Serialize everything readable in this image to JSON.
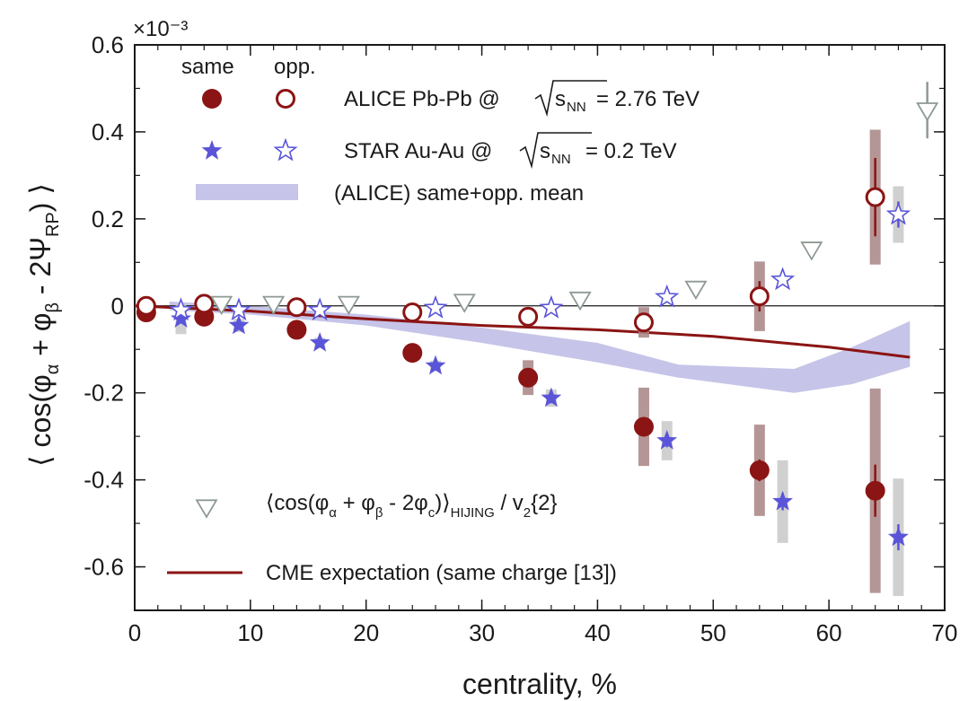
{
  "chart_data": {
    "type": "scatter",
    "xlabel": "centrality, %",
    "ylabel_parts": {
      "main": "⟨ cos(φ",
      "sub_alpha": "α",
      "plus": " + φ",
      "sub_beta": "β",
      "minus": " - 2Ψ",
      "sub_rp": "RP",
      "close": ") ⟩"
    },
    "multiplier": "×10⁻³",
    "xlim": [
      0,
      70
    ],
    "ylim": [
      -0.7,
      0.6
    ],
    "x_ticks": [
      "0",
      "10",
      "20",
      "30",
      "40",
      "50",
      "60",
      "70"
    ],
    "y_ticks": [
      "0.6",
      "0.4",
      "0.2",
      "0",
      "-0.2",
      "-0.4",
      "-0.6"
    ],
    "legend": {
      "same_header": "same",
      "opp_header": "opp.",
      "alice_prefix": "ALICE Pb-Pb @",
      "alice_sqrt_s": "s",
      "alice_sqrt_sub": "NN",
      "alice_suffix": "= 2.76 TeV",
      "star_prefix": "STAR Au-Au @",
      "star_sqrt_s": "s",
      "star_sqrt_sub": "NN",
      "star_suffix": "= 0.2 TeV",
      "band": "(ALICE) same+opp. mean",
      "hijing_main": "⟨cos(φ",
      "hijing_sub_a": "α",
      "hijing_plus": " + φ",
      "hijing_sub_b": "β",
      "hijing_minus": " - 2φ",
      "hijing_sub_c": "c",
      "hijing_close": ")⟩",
      "hijing_sub_h": "HIJING",
      "hijing_v2": " / v",
      "hijing_sub_2": "2",
      "hijing_end": "{2}",
      "cme": "CME expectation (same charge [13])"
    },
    "series": [
      {
        "key": "alice_same",
        "x": [
          1,
          6,
          14,
          24,
          34,
          44,
          54,
          64
        ],
        "y": [
          -0.015,
          -0.025,
          -0.055,
          -0.108,
          -0.165,
          -0.278,
          -0.378,
          -0.425
        ],
        "err": [
          0.005,
          0.005,
          0.008,
          0.01,
          0.015,
          0.02,
          0.025,
          0.06
        ],
        "sys": [
          0.01,
          0.01,
          0.012,
          0.015,
          0.04,
          0.09,
          0.105,
          0.235
        ]
      },
      {
        "key": "alice_opp",
        "x": [
          1,
          6,
          14,
          24,
          34,
          44,
          54,
          64
        ],
        "y": [
          0.0,
          0.005,
          -0.003,
          -0.015,
          -0.025,
          -0.038,
          0.022,
          0.25
        ],
        "err": [
          0.004,
          0.004,
          0.005,
          0.007,
          0.01,
          0.015,
          0.035,
          0.09
        ],
        "sys": [
          0.005,
          0.005,
          0.006,
          0.01,
          0.02,
          0.035,
          0.08,
          0.155
        ]
      },
      {
        "key": "star_same",
        "x": [
          4,
          9,
          16,
          26,
          36,
          46,
          56,
          66
        ],
        "y": [
          -0.03,
          -0.045,
          -0.085,
          -0.138,
          -0.212,
          -0.31,
          -0.45,
          -0.532
        ],
        "err": [
          0.005,
          0.006,
          0.008,
          0.01,
          0.012,
          0.015,
          0.02,
          0.03
        ],
        "sys": [
          0.035,
          0.015,
          0.012,
          0.012,
          0.02,
          0.045,
          0.095,
          0.135
        ]
      },
      {
        "key": "star_opp",
        "x": [
          4,
          9,
          16,
          26,
          36,
          46,
          56,
          66
        ],
        "y": [
          -0.01,
          -0.01,
          -0.01,
          -0.005,
          -0.005,
          0.02,
          0.06,
          0.21
        ],
        "err": [
          0.004,
          0.004,
          0.005,
          0.006,
          0.008,
          0.01,
          0.012,
          0.03
        ],
        "sys": [
          0.005,
          0.005,
          0.005,
          0.005,
          0.005,
          0.008,
          0.01,
          0.065
        ]
      },
      {
        "key": "hijing",
        "x": [
          7.5,
          12,
          18.5,
          28.5,
          38.5,
          48.5,
          58.5,
          68.5
        ],
        "y": [
          0.005,
          0.005,
          0.005,
          0.01,
          0.015,
          0.04,
          0.13,
          0.45
        ],
        "err": [
          0,
          0,
          0,
          0,
          0,
          0,
          0,
          0.065
        ]
      }
    ],
    "cme_curve": {
      "x": [
        0,
        10,
        20,
        30,
        40,
        50,
        60,
        67
      ],
      "y": [
        0.0,
        -0.012,
        -0.03,
        -0.045,
        -0.055,
        -0.07,
        -0.095,
        -0.118
      ]
    },
    "band": {
      "x": [
        3,
        10,
        20,
        30,
        40,
        47,
        57,
        62,
        67
      ],
      "y_low": [
        -0.01,
        -0.02,
        -0.045,
        -0.085,
        -0.13,
        -0.165,
        -0.2,
        -0.18,
        -0.14
      ],
      "y_high": [
        0.01,
        0.0,
        -0.02,
        -0.05,
        -0.085,
        -0.135,
        -0.145,
        -0.095,
        -0.035
      ]
    },
    "colors": {
      "alice": "#8b1414",
      "alice_sys": "#a88484",
      "star": "#5a55d8",
      "star_sys": "#c8c8c8",
      "hijing": "#8e9a92",
      "cme": "#8b1414",
      "band": "#c6c4e8"
    }
  }
}
